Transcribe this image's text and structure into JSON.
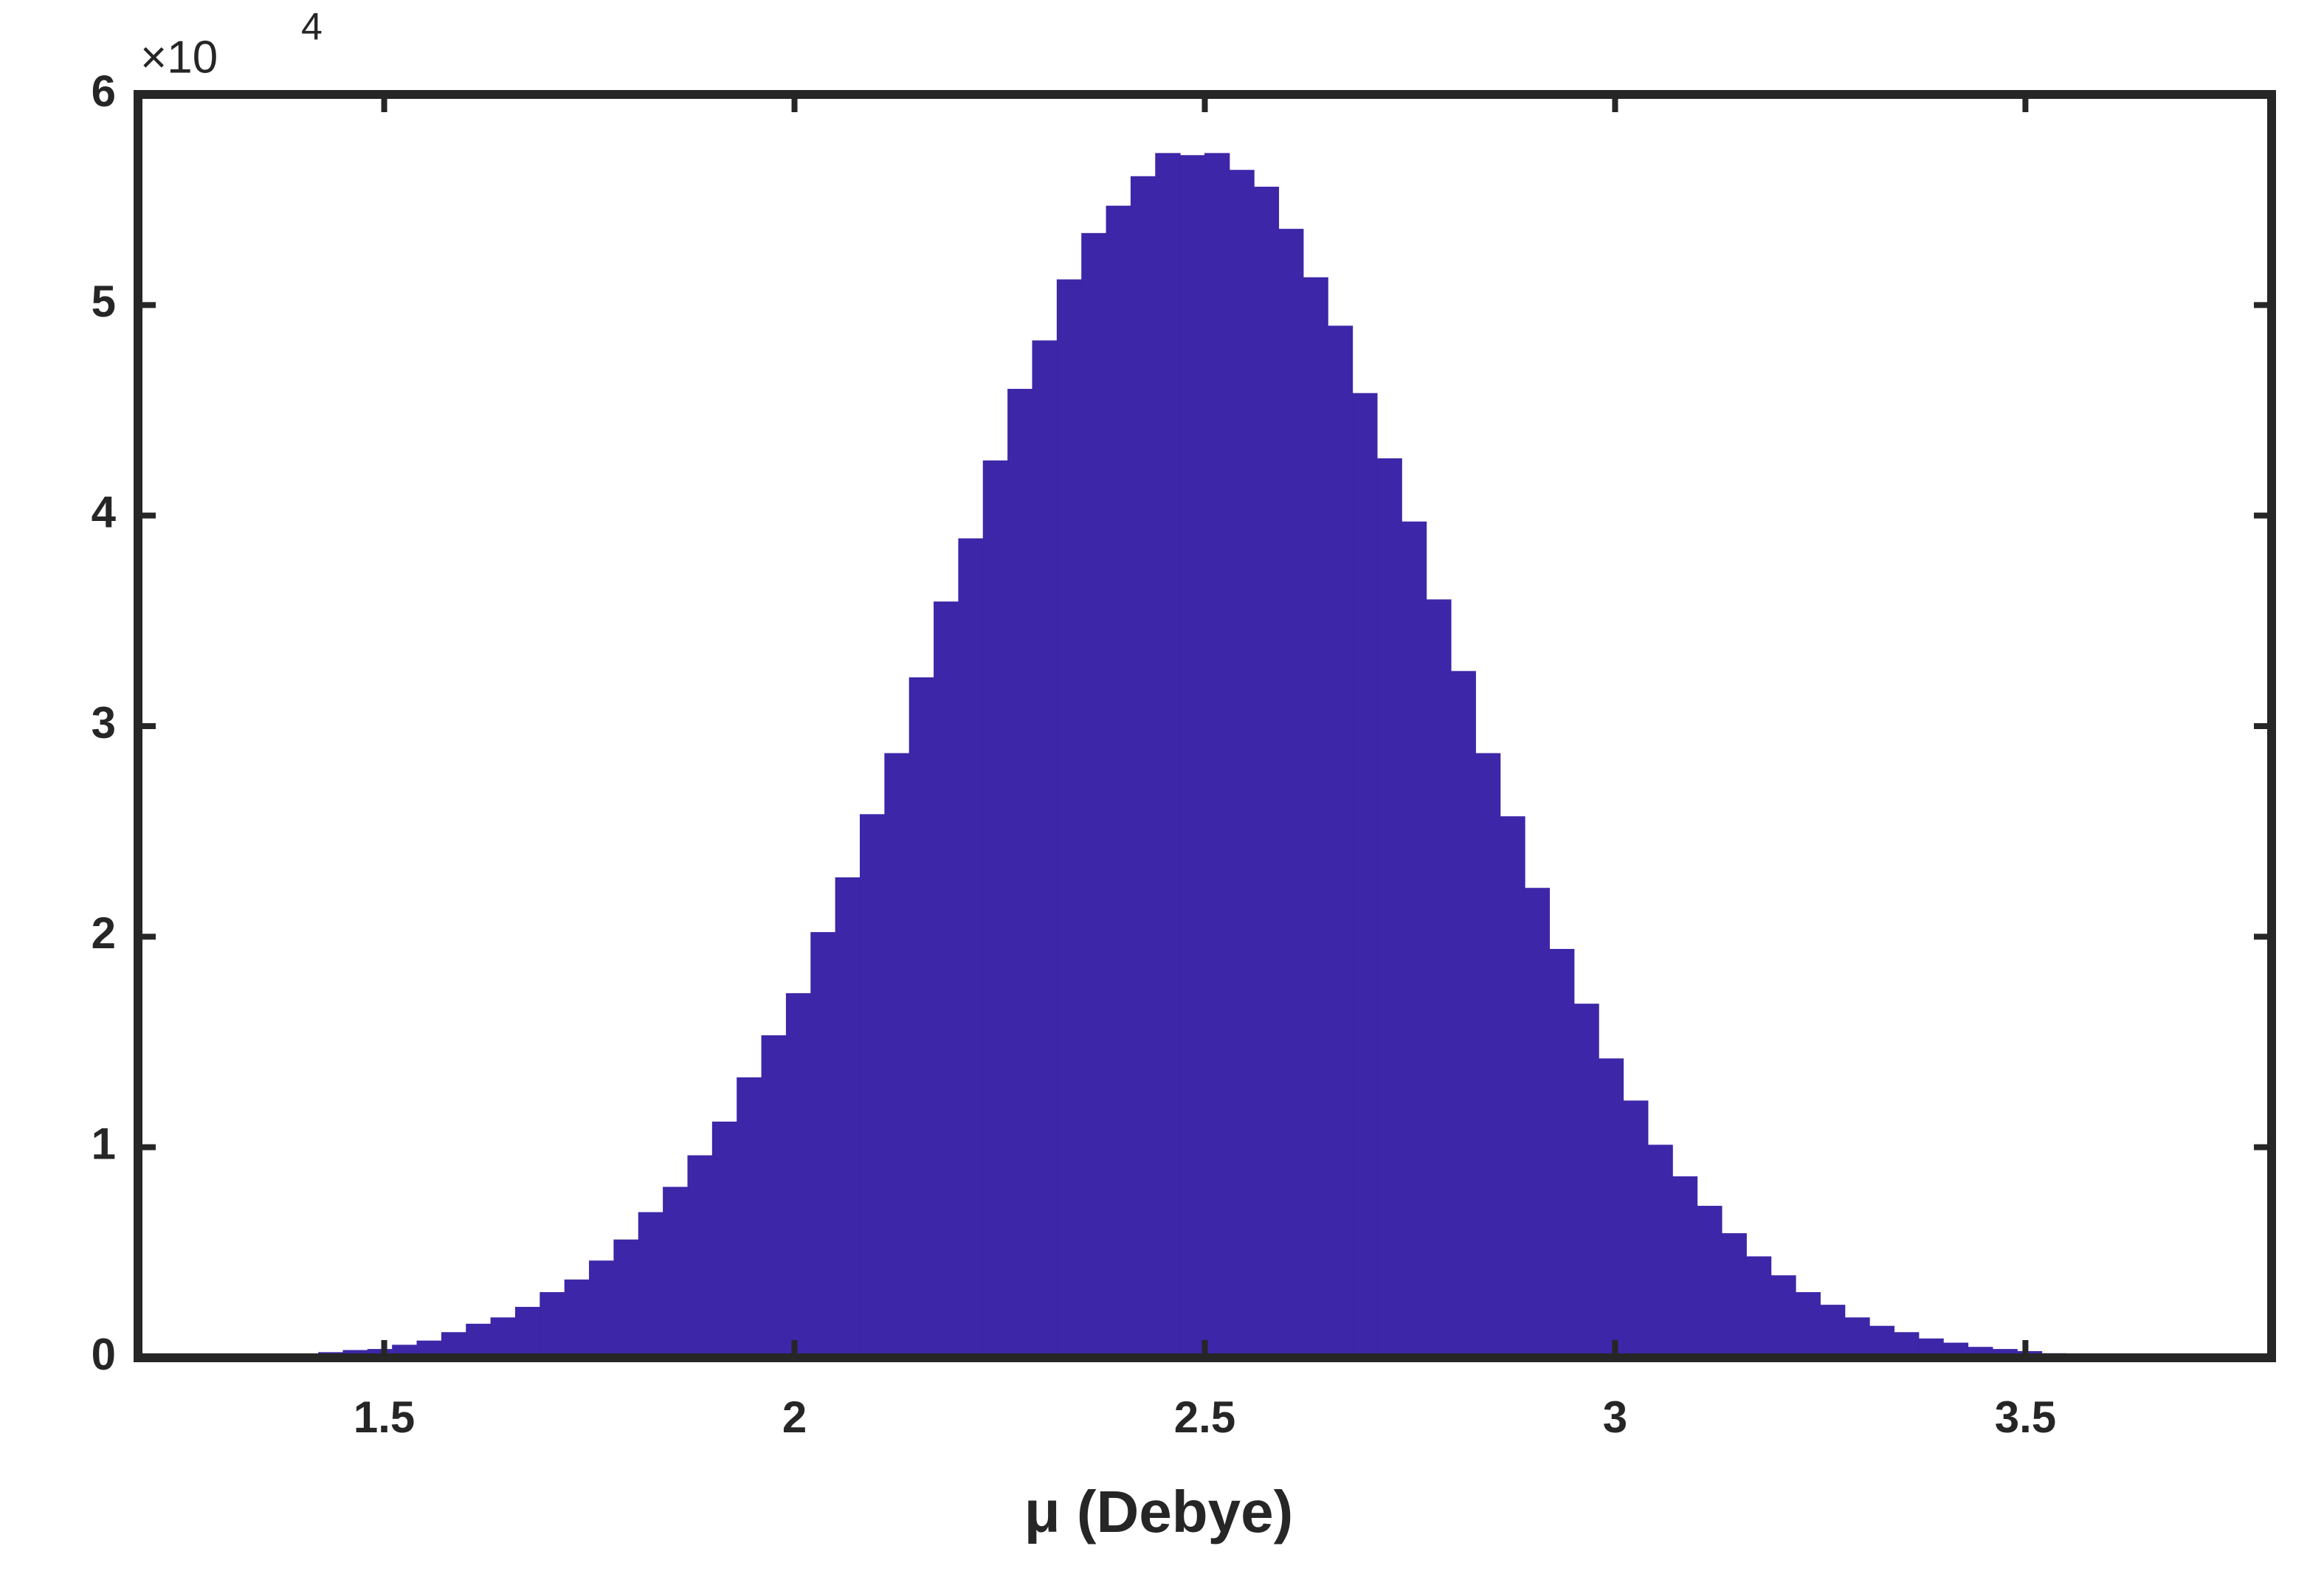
{
  "chart_data": {
    "type": "histogram",
    "xlabel": "μ  (Debye)",
    "y_offset_text": {
      "base": "×10",
      "exponent": "4"
    },
    "color": "#3d26a8",
    "bins": [
      1.21,
      1.24,
      1.27,
      1.3,
      1.33,
      1.36,
      1.39,
      1.42,
      1.45,
      1.48,
      1.51,
      1.54,
      1.57,
      1.6,
      1.63,
      1.66,
      1.69,
      1.72,
      1.75,
      1.78,
      1.81,
      1.84,
      1.87,
      1.9,
      1.93,
      1.96,
      1.99,
      2.02,
      2.05,
      2.08,
      2.11,
      2.14,
      2.17,
      2.2,
      2.23,
      2.26,
      2.29,
      2.32,
      2.35,
      2.38,
      2.41,
      2.44,
      2.47,
      2.5,
      2.53,
      2.56,
      2.59,
      2.62,
      2.65,
      2.68,
      2.71,
      2.74,
      2.77,
      2.8,
      2.83,
      2.86,
      2.89,
      2.92,
      2.95,
      2.98,
      3.01,
      3.04,
      3.07,
      3.1,
      3.13,
      3.16,
      3.19,
      3.22,
      3.25,
      3.28,
      3.31,
      3.34,
      3.37,
      3.4,
      3.43,
      3.46,
      3.49,
      3.52,
      3.55,
      3.58,
      3.61,
      3.64,
      3.67,
      3.7,
      3.73,
      3.76,
      3.79
    ],
    "values": [
      0.001,
      0.002,
      0.003,
      0.005,
      0.008,
      0.012,
      0.018,
      0.025,
      0.035,
      0.04,
      0.06,
      0.08,
      0.12,
      0.16,
      0.19,
      0.24,
      0.31,
      0.37,
      0.46,
      0.56,
      0.69,
      0.81,
      0.96,
      1.12,
      1.33,
      1.53,
      1.73,
      2.02,
      2.28,
      2.58,
      2.87,
      3.23,
      3.59,
      3.89,
      4.26,
      4.6,
      4.83,
      5.12,
      5.34,
      5.47,
      5.61,
      5.72,
      5.71,
      5.72,
      5.64,
      5.56,
      5.36,
      5.13,
      4.9,
      4.58,
      4.27,
      3.97,
      3.6,
      3.26,
      2.87,
      2.57,
      2.23,
      1.94,
      1.68,
      1.42,
      1.22,
      1.01,
      0.86,
      0.72,
      0.59,
      0.48,
      0.39,
      0.31,
      0.25,
      0.19,
      0.15,
      0.12,
      0.09,
      0.07,
      0.05,
      0.04,
      0.03,
      0.02,
      0.015,
      0.01,
      0.008,
      0.005,
      0.003,
      0.002,
      0.001,
      0.001
    ],
    "xlim": [
      1.2,
      3.8
    ],
    "xticks": [
      1.5,
      2,
      2.5,
      3,
      3.5
    ],
    "ylim": [
      0,
      6
    ],
    "yticks": [
      0,
      1,
      2,
      3,
      4,
      5,
      6
    ],
    "grid": false
  }
}
